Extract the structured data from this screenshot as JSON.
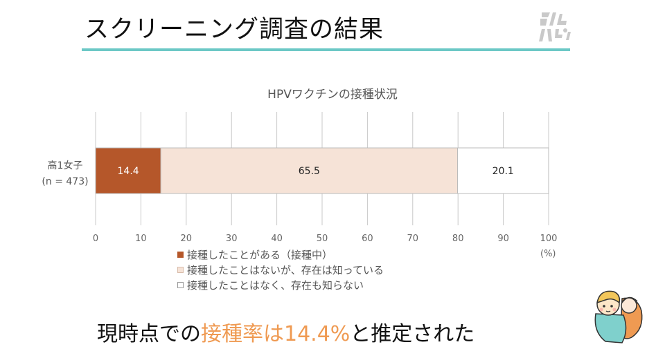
{
  "slide": {
    "title": "スクリーニング調査の結果",
    "logo_text": "みんパピ!",
    "conclusion_prefix": "現時点での",
    "conclusion_highlight": "接種率は14.4%",
    "conclusion_suffix": "と推定された"
  },
  "chart_data": {
    "type": "bar",
    "orientation": "horizontal",
    "stacked": true,
    "title": "HPVワクチンの接種状況",
    "categories": [
      "高1女子\n(n = 473)"
    ],
    "category_line1": "高1女子",
    "category_line2": "(n = 473)",
    "series": [
      {
        "name": "接種したことがある（接種中）",
        "values": [
          14.4
        ],
        "color": "#b5572a",
        "label_color": "#ffffff"
      },
      {
        "name": "接種したことはないが、存在は知っている",
        "values": [
          65.5
        ],
        "color": "#f6e3d7",
        "label_color": "#222222"
      },
      {
        "name": "接種したことはなく、存在も知らない",
        "values": [
          20.1
        ],
        "color": "#ffffff",
        "label_color": "#222222"
      }
    ],
    "xlim": [
      0,
      100
    ],
    "xticks": [
      0,
      10,
      20,
      30,
      40,
      50,
      60,
      70,
      80,
      90,
      100
    ],
    "xunit": "(%)",
    "grid": true,
    "legend_position": "bottom-left"
  },
  "colors": {
    "accent": "#ef9a52",
    "rule": "#6cc8c6",
    "grid": "#c8c8c8"
  }
}
